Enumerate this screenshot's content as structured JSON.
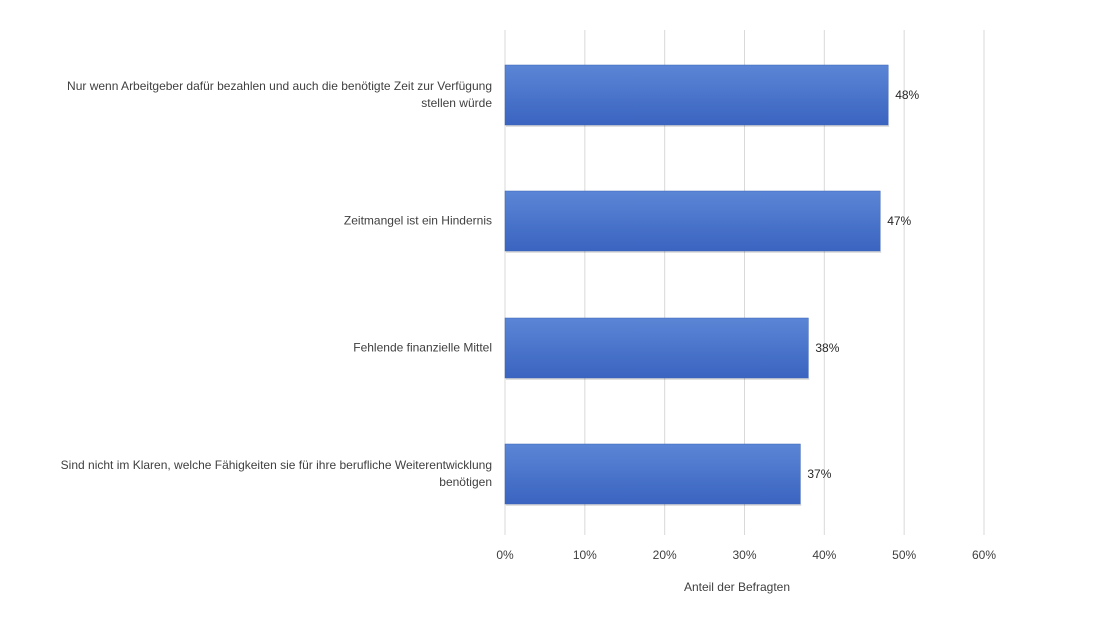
{
  "chart_data": {
    "type": "bar",
    "orientation": "horizontal",
    "categories": [
      "Nur wenn Arbeitgeber dafür bezahlen und auch die benötigte Zeit zur Verfügung stellen würde",
      "Zeitmangel ist ein Hindernis",
      "Fehlende finanzielle Mittel",
      "Sind nicht im Klaren, welche Fähigkeiten sie für ihre berufliche Weiterentwicklung benötigen"
    ],
    "values": [
      48,
      47,
      38,
      37
    ],
    "data_labels": [
      "48%",
      "47%",
      "38%",
      "37%"
    ],
    "x_ticks": [
      "0%",
      "10%",
      "20%",
      "30%",
      "40%",
      "50%",
      "60%"
    ],
    "xlim": [
      0,
      60
    ],
    "title": "",
    "xlabel": "Anteil der Befragten",
    "ylabel": "",
    "grid": "vertical",
    "bar_color": "#4472c4"
  }
}
